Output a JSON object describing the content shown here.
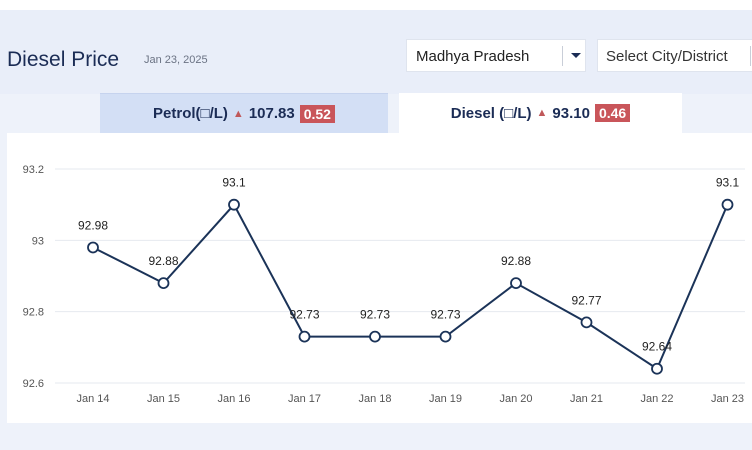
{
  "header": {
    "title": "Diesel Price",
    "date": "Jan 23, 2025",
    "state_select": {
      "value": "Madhya Pradesh"
    },
    "city_select": {
      "placeholder": "Select City/District"
    }
  },
  "tabs": [
    {
      "label": "Petrol(□/L)",
      "price": "107.83",
      "change": "0.52",
      "trend_icon": "triangle-up-icon",
      "active": false
    },
    {
      "label": "Diesel (□/L)",
      "price": "93.10",
      "change": "0.46",
      "trend_icon": "triangle-up-icon",
      "active": true
    }
  ],
  "chart_data": {
    "type": "line",
    "categories": [
      "Jan 14",
      "Jan 15",
      "Jan 16",
      "Jan 17",
      "Jan 18",
      "Jan 19",
      "Jan 20",
      "Jan 21",
      "Jan 22",
      "Jan 23"
    ],
    "values": [
      92.98,
      92.88,
      93.1,
      92.73,
      92.73,
      92.73,
      92.88,
      92.77,
      92.64,
      93.1
    ],
    "data_labels": [
      "92.98",
      "92.88",
      "93.1",
      "92.73",
      "92.73",
      "92.73",
      "92.88",
      "92.77",
      "92.64",
      "93.1"
    ],
    "y_ticks": [
      "92.6",
      "92.8",
      "93",
      "93.2"
    ],
    "ylim": [
      92.6,
      93.2
    ],
    "grid": true,
    "line_color": "#1b3358",
    "marker_fill": "#ffffff"
  },
  "colors": {
    "accent_dark": "#1b2c55",
    "up_red": "#c9555a",
    "inactive_tab": "#d3dff5",
    "page_bg": "#eef2fa"
  }
}
